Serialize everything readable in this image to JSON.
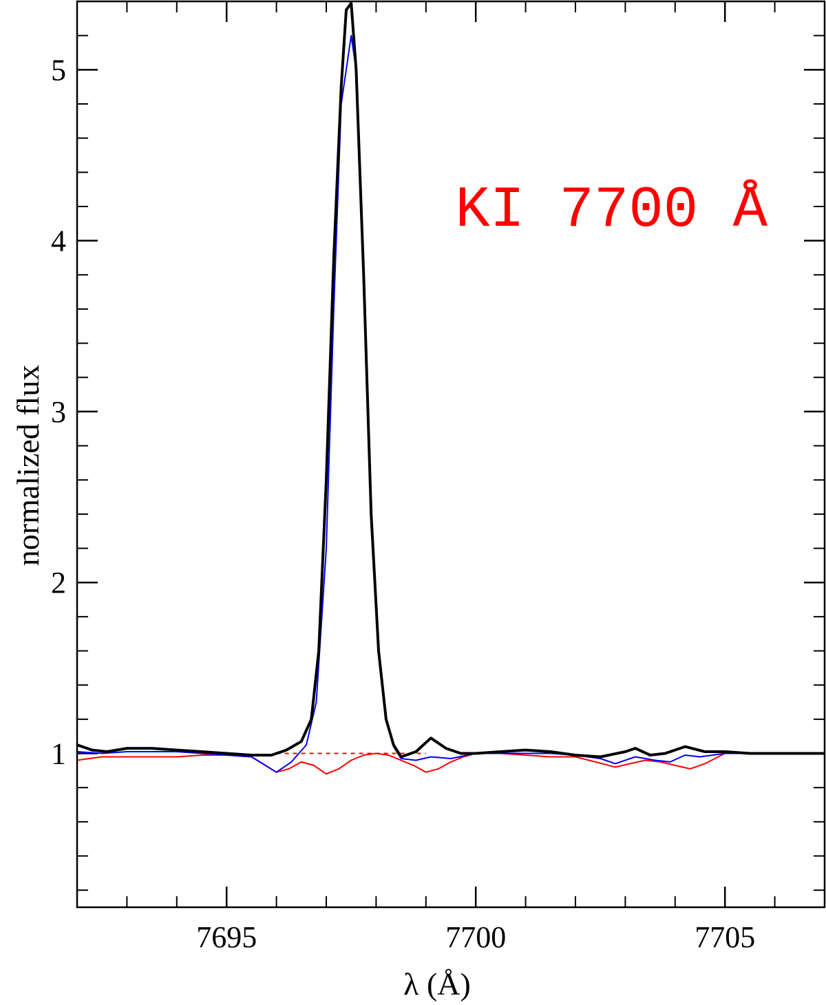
{
  "chart_data": {
    "type": "line",
    "xlabel": "λ (Å)",
    "ylabel": "normalized flux",
    "xlim": [
      7692,
      7707
    ],
    "ylim": [
      0.1,
      5.4
    ],
    "x_ticks": [
      7695,
      7700,
      7705
    ],
    "y_ticks": [
      1,
      2,
      3,
      4,
      5
    ],
    "x_minor_step": 1,
    "y_minor_step": 0.2,
    "grid": false,
    "annotation": {
      "text": "KI  7700 Å",
      "color": "#ff0000"
    },
    "colors": {
      "observed": "#000000",
      "model": "#0000ff",
      "photosphere": "#ff0000"
    },
    "series": [
      {
        "key": "observed",
        "x": [
          7692.0,
          7692.3,
          7692.6,
          7693.0,
          7693.5,
          7694.0,
          7694.5,
          7695.0,
          7695.5,
          7695.9,
          7696.2,
          7696.5,
          7696.7,
          7696.85,
          7697.0,
          7697.15,
          7697.3,
          7697.4,
          7697.5,
          7697.6,
          7697.75,
          7697.9,
          7698.05,
          7698.2,
          7698.35,
          7698.5,
          7698.8,
          7699.1,
          7699.4,
          7699.7,
          7700.0,
          7700.5,
          7701.0,
          7701.5,
          7702.0,
          7702.5,
          7703.0,
          7703.2,
          7703.5,
          7703.8,
          7704.2,
          7704.6,
          7705.0,
          7705.5,
          7706.0,
          7706.5,
          7707.0
        ],
        "y": [
          1.05,
          1.02,
          1.01,
          1.03,
          1.03,
          1.02,
          1.01,
          1.0,
          0.99,
          0.99,
          1.02,
          1.07,
          1.2,
          1.6,
          2.6,
          3.9,
          4.9,
          5.35,
          5.39,
          5.0,
          3.8,
          2.4,
          1.6,
          1.2,
          1.05,
          0.98,
          1.01,
          1.09,
          1.03,
          1.0,
          1.0,
          1.01,
          1.02,
          1.01,
          0.99,
          0.98,
          1.01,
          1.03,
          0.99,
          1.0,
          1.04,
          1.01,
          1.01,
          1.0,
          1.0,
          1.0,
          1.0
        ]
      },
      {
        "key": "model",
        "x": [
          7692.0,
          7692.5,
          7693.0,
          7693.5,
          7694.0,
          7694.5,
          7695.0,
          7695.5,
          7696.0,
          7696.3,
          7696.6,
          7696.8,
          7697.0,
          7697.15,
          7697.3,
          7697.5,
          7697.6,
          7697.75,
          7697.9,
          7698.05,
          7698.2,
          7698.35,
          7698.5,
          7698.8,
          7699.1,
          7699.5,
          7700.0,
          7700.5,
          7701.0,
          7701.5,
          7702.0,
          7702.5,
          7702.8,
          7703.2,
          7703.6,
          7703.9,
          7704.2,
          7704.5,
          7705.0,
          7705.5,
          7706.0,
          7707.0
        ],
        "y": [
          1.01,
          1.0,
          1.01,
          1.01,
          1.01,
          1.0,
          0.99,
          0.98,
          0.89,
          0.95,
          1.05,
          1.3,
          2.2,
          3.6,
          4.8,
          5.2,
          5.0,
          3.8,
          2.4,
          1.6,
          1.2,
          1.04,
          0.97,
          0.96,
          0.98,
          0.97,
          1.0,
          1.0,
          1.0,
          1.0,
          0.99,
          0.97,
          0.94,
          0.98,
          0.96,
          0.95,
          0.99,
          0.98,
          1.0,
          1.0,
          1.0,
          1.0
        ]
      },
      {
        "key": "photosphere",
        "x": [
          7692.0,
          7692.5,
          7693.0,
          7693.5,
          7694.0,
          7694.5,
          7695.0,
          7695.5,
          7696.0,
          7696.25,
          7696.5,
          7696.75,
          7697.0,
          7697.25,
          7697.5,
          7697.75,
          7698.0,
          7698.25,
          7698.5,
          7698.75,
          7699.0,
          7699.25,
          7699.5,
          7699.75,
          7700.0,
          7700.5,
          7701.0,
          7701.5,
          7702.0,
          7702.4,
          7702.8,
          7703.1,
          7703.4,
          7703.7,
          7704.0,
          7704.3,
          7704.6,
          7705.0
        ],
        "y": [
          0.96,
          0.98,
          0.98,
          0.98,
          0.98,
          0.99,
          0.99,
          0.98,
          0.89,
          0.91,
          0.95,
          0.93,
          0.88,
          0.91,
          0.96,
          0.99,
          1.0,
          0.99,
          0.96,
          0.93,
          0.89,
          0.91,
          0.95,
          0.98,
          1.0,
          1.0,
          0.99,
          0.98,
          0.98,
          0.95,
          0.92,
          0.94,
          0.96,
          0.95,
          0.93,
          0.91,
          0.94,
          1.0
        ]
      },
      {
        "key": "continuum",
        "dashed": true,
        "x": [
          7696.0,
          7699.0
        ],
        "y": [
          1.0,
          1.0
        ]
      }
    ]
  }
}
